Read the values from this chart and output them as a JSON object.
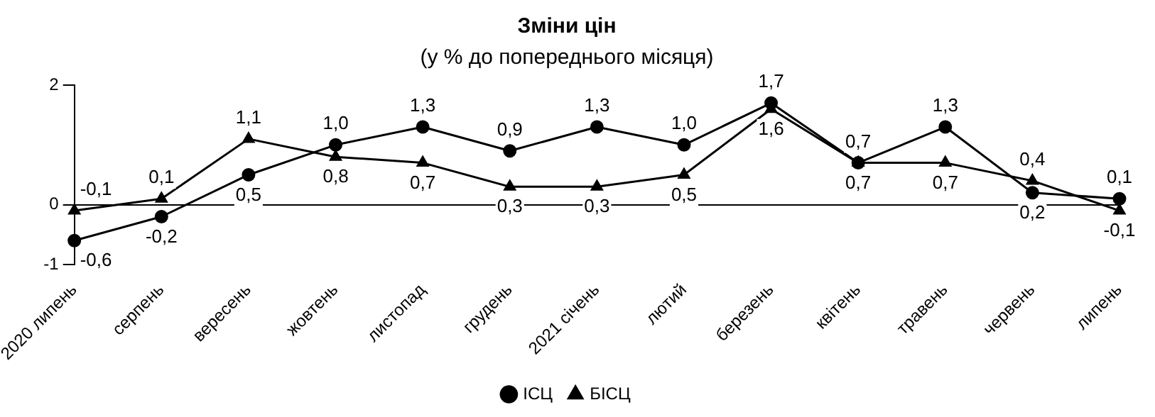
{
  "chart_data": {
    "type": "line",
    "title": "Зміни цін",
    "subtitle": "(у % до попереднього місяця)",
    "categories": [
      "2020 липень",
      "серпень",
      "вересень",
      "жовтень",
      "листопад",
      "грудень",
      "2021 січень",
      "лютий",
      "березень",
      "квітень",
      "травень",
      "червень",
      "липень"
    ],
    "series": [
      {
        "name": "ІСЦ",
        "color": "#000000",
        "marker": "circle",
        "values": [
          -0.6,
          -0.2,
          0.5,
          1.0,
          1.3,
          0.9,
          1.3,
          1.0,
          1.7,
          0.7,
          1.3,
          0.2,
          0.1
        ],
        "value_labels": [
          "-0,6",
          "-0,2",
          "0,5",
          "1,0",
          "1,3",
          "0,9",
          "1,3",
          "1,0",
          "1,7",
          "0,7",
          "1,3",
          "0,2",
          "0,1"
        ]
      },
      {
        "name": "БІСЦ",
        "color": "#000000",
        "marker": "triangle",
        "values": [
          -0.1,
          0.1,
          1.1,
          0.8,
          0.7,
          0.3,
          0.3,
          0.5,
          1.6,
          0.7,
          0.7,
          0.4,
          -0.1
        ],
        "value_labels": [
          "-0,1",
          "0,1",
          "1,1",
          "0,8",
          "0,7",
          "0,3",
          "0,3",
          "0,5",
          "1,6",
          "0,7",
          "0,7",
          "0,4",
          "-0,1"
        ]
      }
    ],
    "ylim": [
      -1,
      2
    ],
    "yticks": [
      -1,
      0,
      2
    ],
    "legend": "bottom"
  }
}
